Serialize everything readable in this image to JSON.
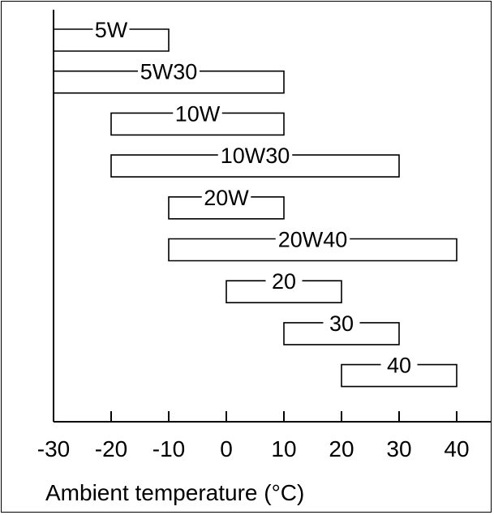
{
  "chart_data": {
    "type": "range-bar",
    "xlabel": "Ambient temperature (°C)",
    "xlim": [
      -30,
      45
    ],
    "ticks": [
      -30,
      -20,
      -10,
      0,
      10,
      20,
      30,
      40
    ],
    "tick_labels": [
      "-30",
      "-20",
      "-10",
      "0",
      "10",
      "20",
      "30",
      "40"
    ],
    "series": [
      {
        "name": "5W",
        "min": -30,
        "max": -10
      },
      {
        "name": "5W30",
        "min": -30,
        "max": 10
      },
      {
        "name": "10W",
        "min": -20,
        "max": 10
      },
      {
        "name": "10W30",
        "min": -20,
        "max": 30
      },
      {
        "name": "20W",
        "min": -10,
        "max": 10
      },
      {
        "name": "20W40",
        "min": -10,
        "max": 40
      },
      {
        "name": "20",
        "min": 0,
        "max": 20
      },
      {
        "name": "30",
        "min": 10,
        "max": 30
      },
      {
        "name": "40",
        "min": 20,
        "max": 40
      }
    ],
    "grid": false,
    "legend": "none"
  }
}
